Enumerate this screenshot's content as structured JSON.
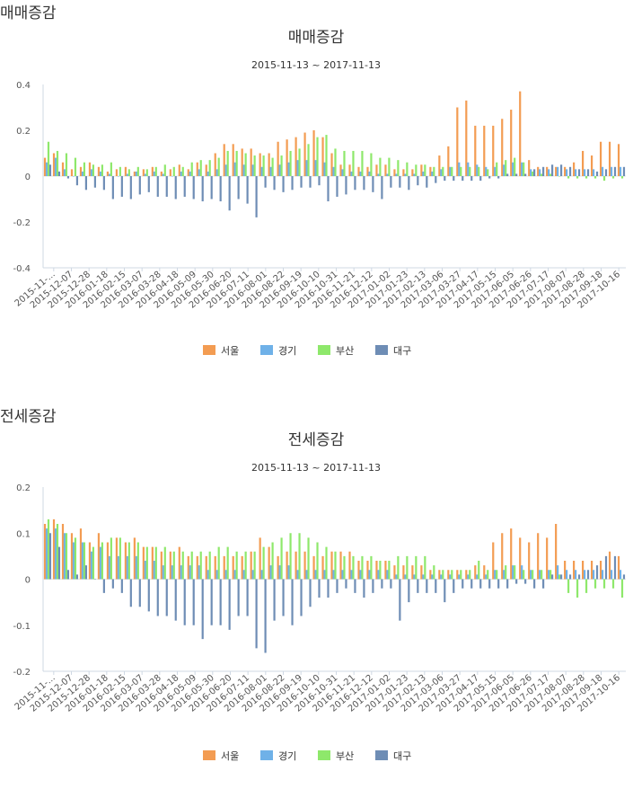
{
  "page": {
    "sections": [
      {
        "heading": "매매증감"
      },
      {
        "heading": "전세증감"
      }
    ]
  },
  "chart_data": [
    {
      "type": "bar",
      "title": "매매증감",
      "subtitle": "2015-11-13 ~ 2017-11-13",
      "ylim": [
        -0.4,
        0.4
      ],
      "yticks": [
        "0.4",
        "0.2",
        "0",
        "-0.2",
        "-0.4"
      ],
      "ytick_values": [
        0.4,
        0.2,
        0,
        -0.2,
        -0.4
      ],
      "grid": false,
      "legend_position": "bottom",
      "x_tick_labels": [
        "2015-11-...",
        "2015-12-07",
        "2015-12-28",
        "2016-01-18",
        "2016-02-15",
        "2016-03-07",
        "2016-03-28",
        "2016-04-18",
        "2016-05-09",
        "2016-05-30",
        "2016-06-20",
        "2016-07-11",
        "2016-08-01",
        "2016-08-22",
        "2016-09-19",
        "2016-10-10",
        "2016-10-31",
        "2016-11-21",
        "2016-12-12",
        "2017-01-02",
        "2017-01-23",
        "2017-02-13",
        "2017-03-06",
        "2017-03-27",
        "2017-04-17",
        "2017-05-15",
        "2017-06-05",
        "2017-06-26",
        "2017-07-17",
        "2017-08-07",
        "2017-08-28",
        "2017-09-18",
        "2017-10-16"
      ],
      "series": [
        {
          "name": "서울",
          "color": "#f39c52",
          "values": [
            0.08,
            0.1,
            0.06,
            0.03,
            0.04,
            0.06,
            0.04,
            0.02,
            0.03,
            0.04,
            0.02,
            0.03,
            0.04,
            0.02,
            0.03,
            0.05,
            0.03,
            0.06,
            0.05,
            0.1,
            0.14,
            0.14,
            0.12,
            0.12,
            0.1,
            0.1,
            0.15,
            0.16,
            0.17,
            0.19,
            0.2,
            0.17,
            0.1,
            0.05,
            0.05,
            0.04,
            0.04,
            0.05,
            0.05,
            0.03,
            0.03,
            0.03,
            0.05,
            0.04,
            0.09,
            0.13,
            0.3,
            0.33,
            0.22,
            0.22,
            0.22,
            0.25,
            0.29,
            0.37,
            0.07,
            0.04,
            0.04,
            0.04,
            0.04,
            0.06,
            0.11,
            0.09,
            0.15,
            0.15,
            0.14
          ]
        },
        {
          "name": "경기",
          "color": "#6fb1e8",
          "values": [
            0.06,
            0.08,
            0.03,
            0.0,
            0.02,
            0.03,
            0.02,
            0.01,
            0.0,
            0.01,
            0.02,
            0.01,
            0.02,
            0.01,
            0.0,
            0.02,
            0.02,
            0.03,
            0.02,
            0.03,
            0.05,
            0.06,
            0.05,
            0.05,
            0.04,
            0.04,
            0.05,
            0.06,
            0.07,
            0.07,
            0.07,
            0.06,
            0.04,
            0.03,
            0.02,
            0.02,
            0.02,
            0.01,
            0.01,
            0.01,
            0.01,
            0.01,
            0.02,
            0.02,
            0.03,
            0.04,
            0.06,
            0.06,
            0.05,
            0.04,
            0.04,
            0.05,
            0.06,
            0.06,
            0.03,
            0.03,
            0.03,
            0.04,
            0.03,
            0.03,
            0.03,
            0.03,
            0.04,
            0.04,
            0.04
          ]
        },
        {
          "name": "부산",
          "color": "#8ee86b",
          "values": [
            0.15,
            0.11,
            0.1,
            0.08,
            0.06,
            0.05,
            0.05,
            0.06,
            0.04,
            0.03,
            0.04,
            0.03,
            0.04,
            0.05,
            0.04,
            0.04,
            0.06,
            0.07,
            0.07,
            0.08,
            0.11,
            0.11,
            0.1,
            0.09,
            0.09,
            0.08,
            0.09,
            0.11,
            0.12,
            0.14,
            0.17,
            0.18,
            0.12,
            0.11,
            0.11,
            0.11,
            0.1,
            0.08,
            0.08,
            0.07,
            0.06,
            0.05,
            0.05,
            0.04,
            0.04,
            0.04,
            0.04,
            0.04,
            0.04,
            0.03,
            0.06,
            0.07,
            0.08,
            0.06,
            0.02,
            0.01,
            0.01,
            0.0,
            -0.01,
            -0.01,
            -0.01,
            -0.01,
            -0.02,
            -0.01,
            -0.01
          ]
        },
        {
          "name": "대구",
          "color": "#6e8db5",
          "values": [
            0.05,
            0.02,
            -0.01,
            -0.04,
            -0.06,
            -0.05,
            -0.06,
            -0.1,
            -0.09,
            -0.1,
            -0.08,
            -0.07,
            -0.09,
            -0.09,
            -0.1,
            -0.09,
            -0.1,
            -0.11,
            -0.1,
            -0.11,
            -0.15,
            -0.1,
            -0.12,
            -0.18,
            -0.05,
            -0.06,
            -0.07,
            -0.06,
            -0.05,
            -0.05,
            -0.04,
            -0.11,
            -0.09,
            -0.08,
            -0.06,
            -0.06,
            -0.07,
            -0.1,
            -0.05,
            -0.05,
            -0.06,
            -0.04,
            -0.05,
            -0.03,
            -0.02,
            -0.02,
            -0.02,
            -0.02,
            -0.02,
            -0.01,
            -0.01,
            0.01,
            0.01,
            0.01,
            0.03,
            0.04,
            0.05,
            0.05,
            0.04,
            0.03,
            0.03,
            0.02,
            0.03,
            0.04,
            0.04
          ]
        }
      ]
    },
    {
      "type": "bar",
      "title": "전세증감",
      "subtitle": "2015-11-13 ~ 2017-11-13",
      "ylim": [
        -0.2,
        0.2
      ],
      "yticks": [
        "0.2",
        "0.1",
        "0",
        "-0.1",
        "-0.2"
      ],
      "ytick_values": [
        0.2,
        0.1,
        0,
        -0.1,
        -0.2
      ],
      "grid": false,
      "legend_position": "bottom",
      "x_tick_labels": [
        "2015-11-...",
        "2015-12-07",
        "2015-12-28",
        "2016-01-18",
        "2016-02-15",
        "2016-03-07",
        "2016-03-28",
        "2016-04-18",
        "2016-05-09",
        "2016-05-30",
        "2016-06-20",
        "2016-07-11",
        "2016-08-01",
        "2016-08-22",
        "2016-09-19",
        "2016-10-10",
        "2016-10-31",
        "2016-11-21",
        "2016-12-12",
        "2017-01-02",
        "2017-01-23",
        "2017-02-13",
        "2017-03-06",
        "2017-03-27",
        "2017-04-17",
        "2017-05-15",
        "2017-06-05",
        "2017-06-26",
        "2017-07-17",
        "2017-08-07",
        "2017-08-28",
        "2017-09-18",
        "2017-10-16"
      ],
      "series": [
        {
          "name": "서울",
          "color": "#f39c52",
          "values": [
            0.12,
            0.13,
            0.12,
            0.1,
            0.11,
            0.08,
            0.1,
            0.08,
            0.09,
            0.08,
            0.09,
            0.07,
            0.07,
            0.06,
            0.06,
            0.07,
            0.05,
            0.05,
            0.05,
            0.05,
            0.05,
            0.05,
            0.05,
            0.06,
            0.09,
            0.07,
            0.05,
            0.06,
            0.06,
            0.06,
            0.05,
            0.05,
            0.06,
            0.06,
            0.06,
            0.04,
            0.04,
            0.04,
            0.04,
            0.03,
            0.03,
            0.03,
            0.03,
            0.02,
            0.02,
            0.02,
            0.02,
            0.02,
            0.03,
            0.03,
            0.08,
            0.1,
            0.11,
            0.09,
            0.08,
            0.1,
            0.09,
            0.12,
            0.04,
            0.04,
            0.04,
            0.04,
            0.04,
            0.06,
            0.05
          ]
        },
        {
          "name": "경기",
          "color": "#6fb1e8",
          "values": [
            0.11,
            0.11,
            0.1,
            0.08,
            0.08,
            0.06,
            0.07,
            0.05,
            0.05,
            0.05,
            0.05,
            0.04,
            0.04,
            0.03,
            0.03,
            0.03,
            0.03,
            0.03,
            0.02,
            0.02,
            0.02,
            0.02,
            0.02,
            0.02,
            0.02,
            0.03,
            0.03,
            0.03,
            0.02,
            0.02,
            0.02,
            0.02,
            0.02,
            0.02,
            0.02,
            0.02,
            0.02,
            0.02,
            0.02,
            0.01,
            0.01,
            0.01,
            0.01,
            0.01,
            0.01,
            0.01,
            0.01,
            0.01,
            0.01,
            0.01,
            0.02,
            0.02,
            0.03,
            0.03,
            0.02,
            0.02,
            0.02,
            0.03,
            0.02,
            0.02,
            0.02,
            0.02,
            0.02,
            0.02,
            0.02
          ]
        },
        {
          "name": "부산",
          "color": "#8ee86b",
          "values": [
            0.13,
            0.12,
            0.1,
            0.09,
            0.08,
            0.07,
            0.08,
            0.09,
            0.09,
            0.08,
            0.08,
            0.07,
            0.07,
            0.07,
            0.06,
            0.06,
            0.06,
            0.06,
            0.06,
            0.07,
            0.07,
            0.06,
            0.06,
            0.06,
            0.07,
            0.08,
            0.09,
            0.1,
            0.1,
            0.09,
            0.08,
            0.07,
            0.06,
            0.05,
            0.05,
            0.05,
            0.05,
            0.04,
            0.04,
            0.05,
            0.05,
            0.05,
            0.05,
            0.03,
            0.02,
            0.02,
            0.02,
            0.02,
            0.04,
            0.02,
            0.02,
            0.03,
            0.03,
            0.02,
            0.02,
            0.02,
            0.02,
            0.01,
            -0.03,
            -0.04,
            -0.03,
            -0.02,
            -0.02,
            -0.02,
            -0.04
          ]
        },
        {
          "name": "대구",
          "color": "#6e8db5",
          "values": [
            0.1,
            0.07,
            0.02,
            0.01,
            0.03,
            0.0,
            -0.03,
            -0.02,
            -0.03,
            -0.06,
            -0.06,
            -0.07,
            -0.08,
            -0.08,
            -0.09,
            -0.1,
            -0.1,
            -0.13,
            -0.1,
            -0.1,
            -0.11,
            -0.08,
            -0.08,
            -0.15,
            -0.16,
            -0.09,
            -0.08,
            -0.1,
            -0.08,
            -0.06,
            -0.04,
            -0.04,
            -0.03,
            -0.02,
            -0.03,
            -0.04,
            -0.03,
            -0.02,
            -0.02,
            -0.09,
            -0.05,
            -0.03,
            -0.03,
            -0.03,
            -0.05,
            -0.03,
            -0.02,
            -0.02,
            -0.02,
            -0.02,
            -0.02,
            -0.02,
            -0.01,
            -0.01,
            -0.02,
            -0.02,
            0.01,
            0.01,
            0.01,
            0.01,
            0.02,
            0.03,
            0.05,
            0.05,
            0.01
          ]
        }
      ]
    }
  ]
}
